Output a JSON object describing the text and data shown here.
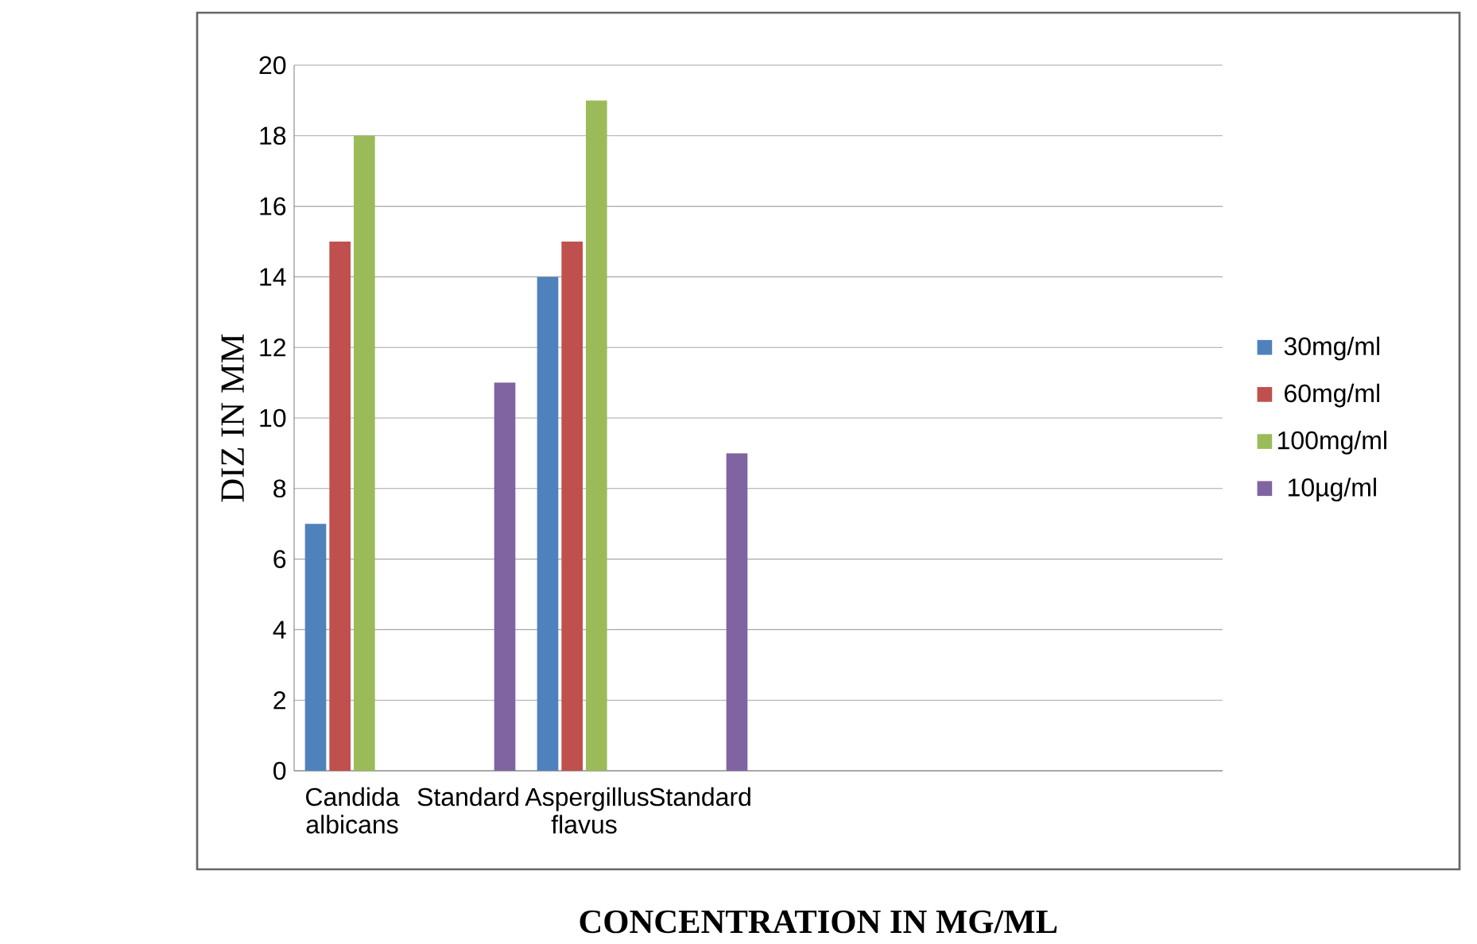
{
  "chart_data": {
    "type": "bar",
    "xlabel": "CONCENTRATION IN MG/ML",
    "ylabel": "DIZ IN MM",
    "categories": [
      "Candida albicans",
      "Standard",
      "Aspergillus flavus",
      "Standard",
      null,
      null,
      null,
      null
    ],
    "series": [
      {
        "name": "30mg/ml",
        "color": "#4f81bd",
        "values": [
          7,
          null,
          14,
          null,
          null,
          null,
          null,
          null
        ]
      },
      {
        "name": "60mg/ml",
        "color": "#c0504d",
        "values": [
          15,
          null,
          15,
          null,
          null,
          null,
          null,
          null
        ]
      },
      {
        "name": "100mg/ml",
        "color": "#9bbb59",
        "values": [
          18,
          null,
          19,
          null,
          null,
          null,
          null,
          null
        ]
      },
      {
        "name": "10µg/ml",
        "color": "#8064a2",
        "values": [
          null,
          11,
          null,
          9,
          null,
          null,
          null,
          null
        ]
      }
    ],
    "ylim": [
      0,
      20
    ],
    "yticks": [
      0,
      2,
      4,
      6,
      8,
      10,
      12,
      14,
      16,
      18,
      20
    ],
    "grid": "y",
    "legend": "right"
  }
}
